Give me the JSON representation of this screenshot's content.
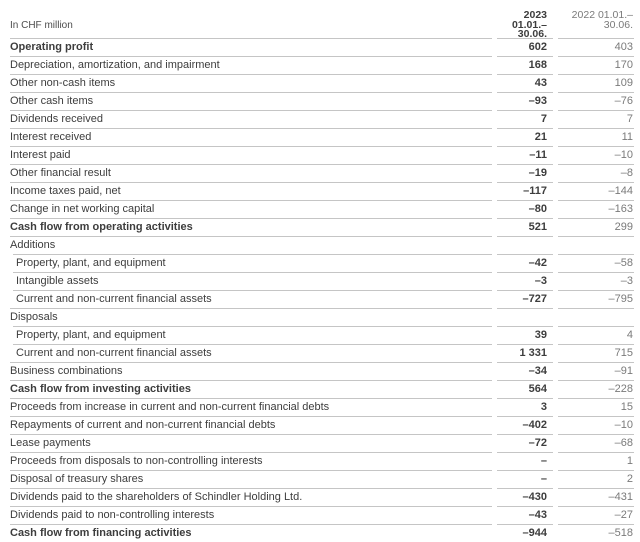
{
  "document": {
    "type": "cash-flow-statement-table",
    "unit_label": "In CHF million"
  },
  "header": {
    "columns": [
      {
        "year": "2023",
        "period": "01.01.–30.06.",
        "emphasis": true
      },
      {
        "year": "2022",
        "period": "01.01.–30.06.",
        "emphasis": false
      }
    ]
  },
  "rows": [
    {
      "label": "Operating profit",
      "v2023": "602",
      "v2022": "403",
      "bold": true,
      "indent": false
    },
    {
      "label": "Depreciation, amortization, and impairment",
      "v2023": "168",
      "v2022": "170",
      "bold": false,
      "indent": false
    },
    {
      "label": "Other non-cash items",
      "v2023": "43",
      "v2022": "109",
      "bold": false,
      "indent": false
    },
    {
      "label": "Other cash items",
      "v2023": "–93",
      "v2022": "–76",
      "bold": false,
      "indent": false
    },
    {
      "label": "Dividends received",
      "v2023": "7",
      "v2022": "7",
      "bold": false,
      "indent": false
    },
    {
      "label": "Interest received",
      "v2023": "21",
      "v2022": "11",
      "bold": false,
      "indent": false
    },
    {
      "label": "Interest paid",
      "v2023": "–11",
      "v2022": "–10",
      "bold": false,
      "indent": false
    },
    {
      "label": "Other financial result",
      "v2023": "–19",
      "v2022": "–8",
      "bold": false,
      "indent": false
    },
    {
      "label": "Income taxes paid, net",
      "v2023": "–117",
      "v2022": "–144",
      "bold": false,
      "indent": false
    },
    {
      "label": "Change in net working capital",
      "v2023": "–80",
      "v2022": "–163",
      "bold": false,
      "indent": false
    },
    {
      "label": "Cash flow from operating activities",
      "v2023": "521",
      "v2022": "299",
      "bold": true,
      "indent": false
    },
    {
      "label": "Additions",
      "v2023": "",
      "v2022": "",
      "bold": false,
      "indent": false
    },
    {
      "label": "Property, plant, and equipment",
      "v2023": "–42",
      "v2022": "–58",
      "bold": false,
      "indent": true
    },
    {
      "label": "Intangible assets",
      "v2023": "–3",
      "v2022": "–3",
      "bold": false,
      "indent": true
    },
    {
      "label": "Current and non-current financial assets",
      "v2023": "–727",
      "v2022": "–795",
      "bold": false,
      "indent": true
    },
    {
      "label": "Disposals",
      "v2023": "",
      "v2022": "",
      "bold": false,
      "indent": false
    },
    {
      "label": "Property, plant, and equipment",
      "v2023": "39",
      "v2022": "4",
      "bold": false,
      "indent": true
    },
    {
      "label": "Current and non-current financial assets",
      "v2023": "1 331",
      "v2022": "715",
      "bold": false,
      "indent": true
    },
    {
      "label": "Business combinations",
      "v2023": "–34",
      "v2022": "–91",
      "bold": false,
      "indent": false
    },
    {
      "label": "Cash flow from investing activities",
      "v2023": "564",
      "v2022": "–228",
      "bold": true,
      "indent": false
    },
    {
      "label": "Proceeds from increase in current and non-current financial debts",
      "v2023": "3",
      "v2022": "15",
      "bold": false,
      "indent": false
    },
    {
      "label": "Repayments of current and non-current financial debts",
      "v2023": "–402",
      "v2022": "–10",
      "bold": false,
      "indent": false
    },
    {
      "label": "Lease payments",
      "v2023": "–72",
      "v2022": "–68",
      "bold": false,
      "indent": false
    },
    {
      "label": "Proceeds from disposals to non-controlling interests",
      "v2023": "–",
      "v2022": "1",
      "bold": false,
      "indent": false
    },
    {
      "label": "Disposal of treasury shares",
      "v2023": "–",
      "v2022": "2",
      "bold": false,
      "indent": false
    },
    {
      "label": "Dividends paid to the shareholders of Schindler Holding Ltd.",
      "v2023": "–430",
      "v2022": "–431",
      "bold": false,
      "indent": false
    },
    {
      "label": "Dividends paid to non-controlling interests",
      "v2023": "–43",
      "v2022": "–27",
      "bold": false,
      "indent": false
    },
    {
      "label": "Cash flow from financing activities",
      "v2023": "–944",
      "v2022": "–518",
      "bold": true,
      "indent": false
    }
  ],
  "colors": {
    "text_dark": "#3d3d3d",
    "text_gray": "#7a7a7a",
    "rule": "#c5c5c5",
    "background": "#ffffff"
  }
}
